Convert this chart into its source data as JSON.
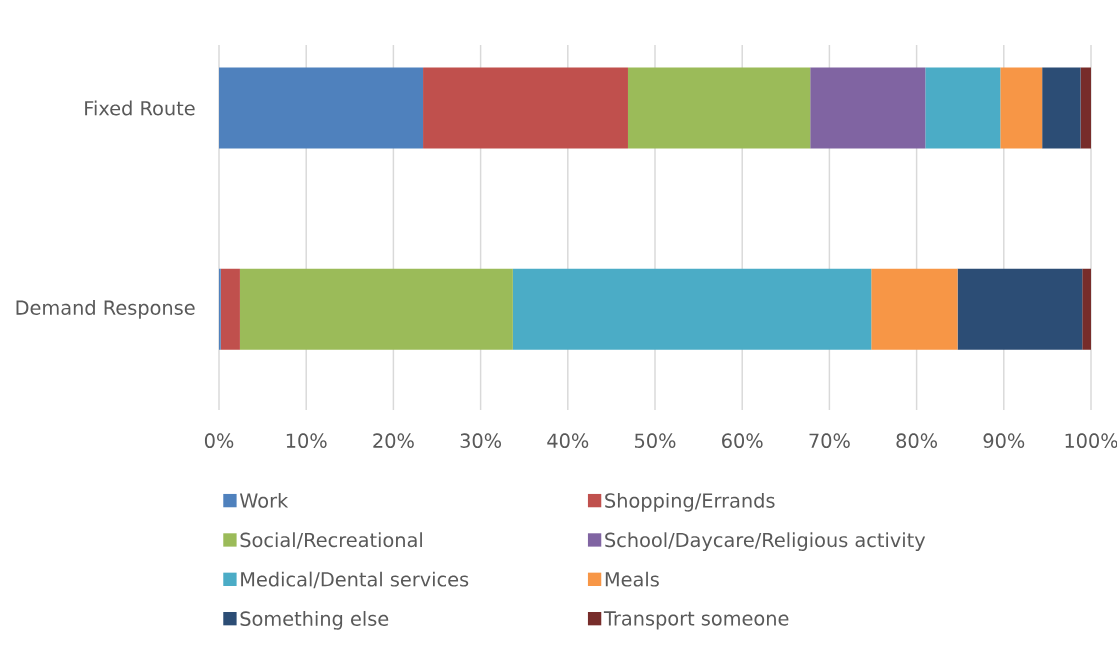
{
  "chart_data": {
    "type": "bar",
    "orientation": "horizontal",
    "stacked": true,
    "categories": [
      "Fixed Route",
      "Demand Response"
    ],
    "series": [
      {
        "name": "Work",
        "color": "#4f81bd",
        "values": [
          23.4,
          0.2
        ]
      },
      {
        "name": "Shopping/Errands",
        "color": "#c0504d",
        "values": [
          23.5,
          2.2
        ]
      },
      {
        "name": "Social/Recreational",
        "color": "#9bbb59",
        "values": [
          20.9,
          31.3
        ]
      },
      {
        "name": "School/Daycare/Religious activity",
        "color": "#8064a2",
        "values": [
          13.2,
          0
        ]
      },
      {
        "name": "Medical/Dental services",
        "color": "#4bacc6",
        "values": [
          8.6,
          41.1
        ]
      },
      {
        "name": "Meals",
        "color": "#f79646",
        "values": [
          4.8,
          9.9
        ]
      },
      {
        "name": "Something else",
        "color": "#2c4d75",
        "values": [
          4.4,
          14.3
        ]
      },
      {
        "name": "Transport someone",
        "color": "#772c2a",
        "values": [
          1.2,
          1.0
        ]
      }
    ],
    "xlim": [
      0,
      100
    ],
    "xticks": [
      {
        "value": 0,
        "label": "0%"
      },
      {
        "value": 10,
        "label": "10%"
      },
      {
        "value": 20,
        "label": "20%"
      },
      {
        "value": 30,
        "label": "30%"
      },
      {
        "value": 40,
        "label": "40%"
      },
      {
        "value": 50,
        "label": "50%"
      },
      {
        "value": 60,
        "label": "60%"
      },
      {
        "value": 70,
        "label": "70%"
      },
      {
        "value": 80,
        "label": "80%"
      },
      {
        "value": 90,
        "label": "90%"
      },
      {
        "value": 100,
        "label": "100%"
      }
    ],
    "grid": "x",
    "legend": "bottom"
  }
}
